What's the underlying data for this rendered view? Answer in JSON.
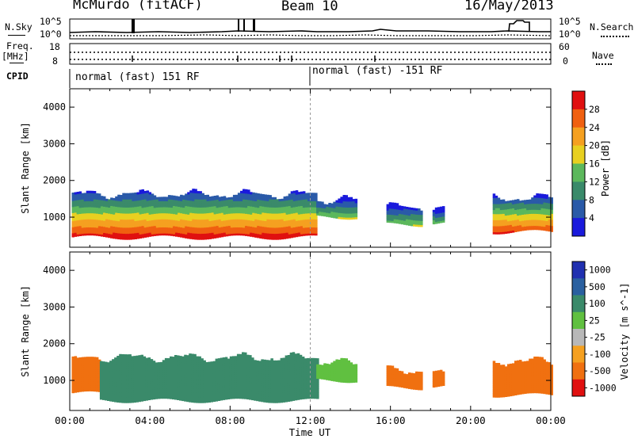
{
  "header": {
    "station": "McMurdo (fitACF)",
    "beam": "Beam 10",
    "date": "16/May/2013"
  },
  "status_panels": {
    "left_labels": {
      "nsky": "N.Sky",
      "freq": "Freq.",
      "freq_unit": "[MHz]",
      "cpid": "CPID"
    },
    "right_labels": {
      "nsearch": "N.Search",
      "nave": "Nave"
    },
    "noise_ticks_left": [
      "10^5",
      "10^0"
    ],
    "noise_ticks_right": [
      "10^5",
      "10^0"
    ],
    "freq_ticks": [
      "18",
      "8"
    ],
    "nave_ticks": [
      "60",
      "0"
    ],
    "cpid_segments": [
      "normal (fast) 151 RF",
      "normal (fast) -151 RF"
    ]
  },
  "chart_data": [
    {
      "type": "heatmap",
      "title": "",
      "xlabel": "",
      "ylabel": "Slant Range [km]",
      "x_tick_labels": [
        "00:00",
        "04:00",
        "08:00",
        "12:00",
        "16:00",
        "20:00",
        "00:00"
      ],
      "y_tick_labels": [
        "1000",
        "2000",
        "3000",
        "4000"
      ],
      "xlim_hours": [
        0,
        24
      ],
      "ylim_km": [
        180,
        4500
      ],
      "colorbar": {
        "label": "Power [dB]",
        "ticks": [
          "4",
          "8",
          "12",
          "16",
          "20",
          "24",
          "28"
        ],
        "range": [
          0,
          30
        ],
        "colors": [
          "#1a1adc",
          "#2a5aa8",
          "#3a8a6a",
          "#5cb85c",
          "#e8d020",
          "#f5a020",
          "#f06010",
          "#e01010"
        ]
      },
      "regions": [
        {
          "t0": 0.1,
          "t1": 12.3,
          "r0": 450,
          "r1": 1600,
          "peak_db": 28
        },
        {
          "t0": 12.3,
          "t1": 14.3,
          "r0": 1000,
          "r1": 1450,
          "peak_db": 14
        },
        {
          "t0": 15.8,
          "t1": 17.5,
          "r0": 800,
          "r1": 1250,
          "peak_db": 14
        },
        {
          "t0": 18.1,
          "t1": 18.6,
          "r0": 850,
          "r1": 1150,
          "peak_db": 12
        },
        {
          "t0": 21.1,
          "t1": 24.0,
          "r0": 600,
          "r1": 1500,
          "peak_db": 26
        }
      ]
    },
    {
      "type": "heatmap",
      "title": "",
      "xlabel": "Time UT",
      "ylabel": "Slant Range [km]",
      "x_tick_labels": [
        "00:00",
        "04:00",
        "08:00",
        "12:00",
        "16:00",
        "20:00",
        "00:00"
      ],
      "y_tick_labels": [
        "1000",
        "2000",
        "3000",
        "4000"
      ],
      "xlim_hours": [
        0,
        24
      ],
      "ylim_km": [
        180,
        4500
      ],
      "colorbar": {
        "label": "Velocity [m s^-1]",
        "ticks": [
          "1000",
          "500",
          "100",
          "25",
          "-25",
          "-100",
          "-500",
          "-1000"
        ],
        "colors": [
          "#2030b0",
          "#2a60a0",
          "#3a8a6a",
          "#60c040",
          "#b8b8b8",
          "#f5a020",
          "#f07010",
          "#e01010"
        ]
      },
      "regions": [
        {
          "t0": 0.1,
          "t1": 1.5,
          "r0": 650,
          "r1": 1550,
          "vel_ms": -150
        },
        {
          "t0": 1.5,
          "t1": 12.3,
          "r0": 450,
          "r1": 1600,
          "vel_ms": 100
        },
        {
          "t0": 12.3,
          "t1": 14.3,
          "r0": 1000,
          "r1": 1450,
          "vel_ms": 60
        },
        {
          "t0": 15.8,
          "t1": 17.5,
          "r0": 800,
          "r1": 1250,
          "vel_ms": -150
        },
        {
          "t0": 18.1,
          "t1": 18.6,
          "r0": 850,
          "r1": 1150,
          "vel_ms": -150
        },
        {
          "t0": 21.1,
          "t1": 24.0,
          "r0": 600,
          "r1": 1500,
          "vel_ms": -150
        }
      ]
    }
  ]
}
